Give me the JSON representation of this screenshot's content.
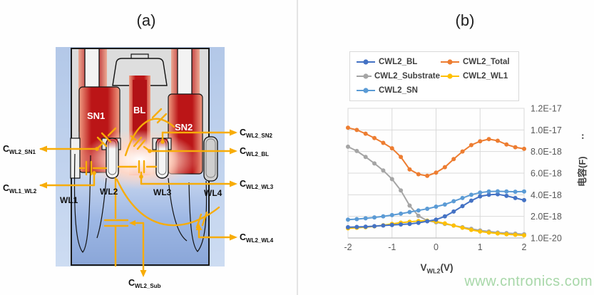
{
  "figure": {
    "panel_a_title": "(a)",
    "panel_b_title": "(b)",
    "watermark": "www.cntronics.com"
  },
  "panel_a": {
    "device_labels": {
      "sn1": "SN1",
      "bl": "BL",
      "sn2": "SN2",
      "wl1": "WL1",
      "wl2": "WL2",
      "wl3": "WL3",
      "wl4": "WL4"
    },
    "cap_labels": {
      "wl2_sn1": {
        "main": "C",
        "sub": "WL2_SN1"
      },
      "wl1_wl2": {
        "main": "C",
        "sub": "WL1_WL2"
      },
      "wl2_sn2": {
        "main": "C",
        "sub": "WL2_SN2"
      },
      "wl2_bl": {
        "main": "C",
        "sub": "WL2_BL"
      },
      "wl2_wl3": {
        "main": "C",
        "sub": "WL2_WL3"
      },
      "wl2_wl4": {
        "main": "C",
        "sub": "WL2_WL4"
      },
      "wl2_sub": {
        "main": "C",
        "sub": "WL2_Sub"
      }
    },
    "colors": {
      "outer_border_blue": "#b9cde9",
      "device_body_gray": "#dcdcdc",
      "hot_red": "#bb1517",
      "substrate_blue": "#8aa6d8",
      "annotation_orange": "#F7AC08"
    }
  },
  "chart_data": {
    "type": "line",
    "title": "(b)",
    "xlabel": {
      "main": "V",
      "sub": "WL2",
      "unit": "(V)"
    },
    "ylabel": "电容(F)",
    "ylabel_suffix": "‥",
    "x_ticks": [
      "-2",
      "-1",
      "0",
      "1",
      "2"
    ],
    "x_tick_values": [
      -2,
      -1,
      0,
      1,
      2
    ],
    "y_ticks": [
      "1.2E-17",
      "1.0E-17",
      "8.0E-18",
      "6.0E-18",
      "4.0E-18",
      "2.0E-18",
      "1.0E-20"
    ],
    "y_axis_note": "linear scale, gridline step 2.0E-18 F, baseline labeled 1.0E-20",
    "value_unit": "1E-18 F",
    "xlim": [
      -2,
      2
    ],
    "ylim_e18": [
      0,
      12
    ],
    "grid": true,
    "legend_position": "top",
    "x": [
      -2,
      -1.8,
      -1.6,
      -1.4,
      -1.2,
      -1,
      -0.8,
      -0.6,
      -0.4,
      -0.2,
      0,
      0.2,
      0.4,
      0.6,
      0.8,
      1,
      1.2,
      1.4,
      1.6,
      1.8,
      2
    ],
    "series": [
      {
        "name": "CWL2_BL",
        "color": "#4472C4",
        "values_e18": [
          1.0,
          1.02,
          1.05,
          1.1,
          1.15,
          1.2,
          1.25,
          1.3,
          1.4,
          1.55,
          1.7,
          2.0,
          2.45,
          2.95,
          3.45,
          3.85,
          4.0,
          4.05,
          3.9,
          3.7,
          3.5
        ]
      },
      {
        "name": "CWL2_Total",
        "color": "#ED7D31",
        "values_e18": [
          10.2,
          10.0,
          9.65,
          9.25,
          8.8,
          8.3,
          7.5,
          6.35,
          5.9,
          5.75,
          6.05,
          6.55,
          7.3,
          8.0,
          8.6,
          8.95,
          9.15,
          9.0,
          8.65,
          8.4,
          8.25
        ]
      },
      {
        "name": "CWL2_Substrate",
        "color": "#A5A5A5",
        "values_e18": [
          8.45,
          8.05,
          7.5,
          6.9,
          6.25,
          5.45,
          4.4,
          3.0,
          2.05,
          1.6,
          1.45,
          1.3,
          1.15,
          1.0,
          0.85,
          0.7,
          0.6,
          0.5,
          0.45,
          0.4,
          0.35
        ]
      },
      {
        "name": "CWL2_WL1",
        "color": "#FFC000",
        "values_e18": [
          0.9,
          0.95,
          1.0,
          1.08,
          1.18,
          1.3,
          1.42,
          1.5,
          1.57,
          1.6,
          1.52,
          1.35,
          1.15,
          0.95,
          0.75,
          0.6,
          0.5,
          0.42,
          0.35,
          0.3,
          0.25
        ]
      },
      {
        "name": "CWL2_SN",
        "color": "#5B9BD5",
        "values_e18": [
          1.7,
          1.75,
          1.82,
          1.9,
          2.0,
          2.12,
          2.25,
          2.4,
          2.55,
          2.7,
          2.9,
          3.1,
          3.4,
          3.7,
          4.0,
          4.2,
          4.3,
          4.32,
          4.3,
          4.28,
          4.3
        ]
      }
    ]
  }
}
